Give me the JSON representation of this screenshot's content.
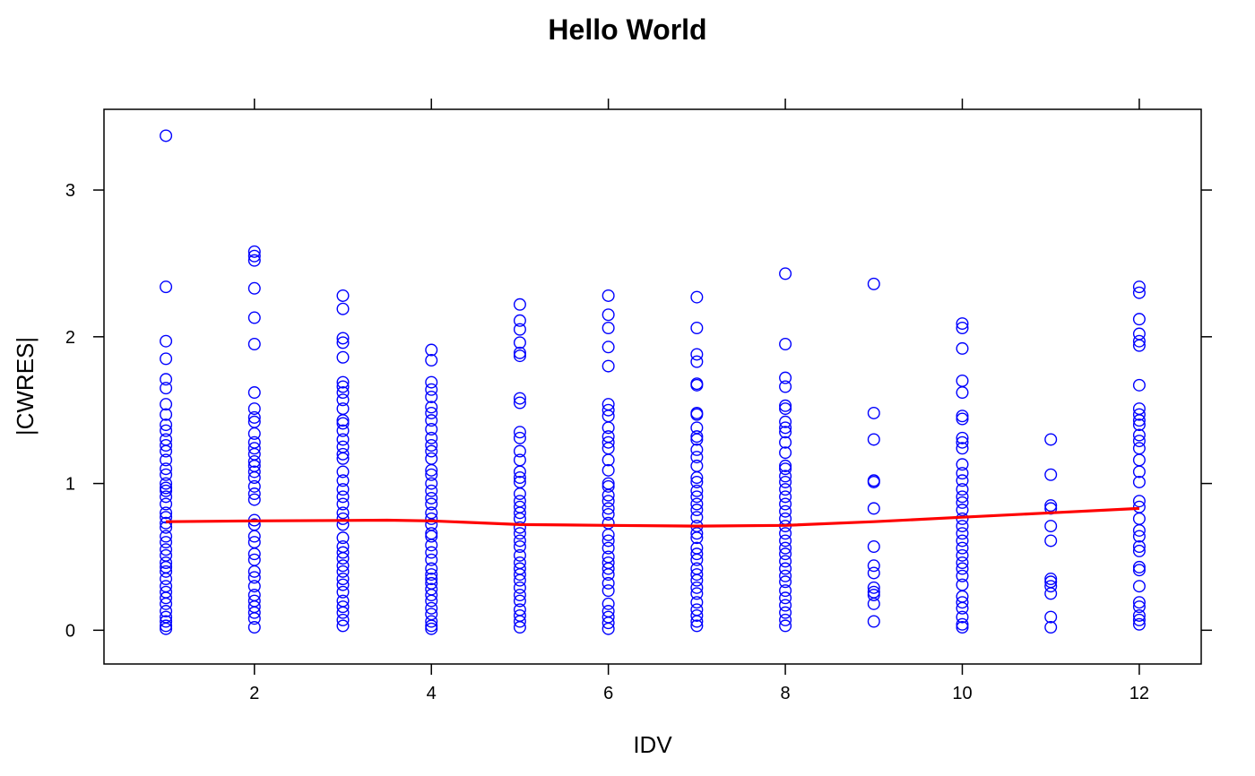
{
  "chart_data": {
    "type": "scatter",
    "title": "Hello World",
    "xlabel": "IDV",
    "ylabel": "|CWRES|",
    "xlim": [
      0.3,
      12.7
    ],
    "ylim": [
      -0.23,
      3.55
    ],
    "x_ticks": [
      2,
      4,
      6,
      8,
      10,
      12
    ],
    "y_ticks": [
      0,
      1,
      2,
      3
    ],
    "grid": false,
    "point_color": "#0000ff",
    "smooth_color": "#ff0000",
    "series": [
      {
        "points_by_x": [
          {
            "x": 1,
            "y": [
              3.37,
              2.34,
              1.97,
              1.85,
              1.71,
              1.65,
              1.54,
              1.47,
              1.4,
              1.36,
              1.3,
              1.26,
              1.22,
              1.16,
              1.1,
              1.06,
              1.0,
              0.97,
              0.95,
              0.91,
              0.86,
              0.8,
              0.77,
              0.73,
              0.7,
              0.64,
              0.6,
              0.55,
              0.51,
              0.46,
              0.43,
              0.4,
              0.35,
              0.3,
              0.26,
              0.22,
              0.18,
              0.13,
              0.09,
              0.06,
              0.03,
              0.01
            ]
          },
          {
            "x": 2,
            "y": [
              2.58,
              2.55,
              2.52,
              2.33,
              2.13,
              1.95,
              1.62,
              1.51,
              1.45,
              1.42,
              1.34,
              1.28,
              1.24,
              1.2,
              1.15,
              1.12,
              1.08,
              1.04,
              0.98,
              0.93,
              0.89,
              0.75,
              0.72,
              0.64,
              0.6,
              0.52,
              0.48,
              0.4,
              0.36,
              0.3,
              0.24,
              0.2,
              0.16,
              0.12,
              0.08,
              0.02
            ]
          },
          {
            "x": 3,
            "y": [
              2.28,
              2.19,
              1.99,
              1.96,
              1.86,
              1.69,
              1.66,
              1.62,
              1.57,
              1.51,
              1.43,
              1.41,
              1.36,
              1.3,
              1.25,
              1.2,
              1.17,
              1.08,
              1.02,
              0.96,
              0.91,
              0.86,
              0.8,
              0.76,
              0.72,
              0.63,
              0.57,
              0.53,
              0.49,
              0.44,
              0.4,
              0.35,
              0.31,
              0.26,
              0.2,
              0.16,
              0.12,
              0.07,
              0.03
            ]
          },
          {
            "x": 4,
            "y": [
              1.91,
              1.84,
              1.69,
              1.64,
              1.59,
              1.52,
              1.48,
              1.43,
              1.37,
              1.31,
              1.26,
              1.22,
              1.17,
              1.09,
              1.06,
              1.0,
              0.95,
              0.9,
              0.86,
              0.8,
              0.76,
              0.72,
              0.66,
              0.64,
              0.58,
              0.53,
              0.48,
              0.42,
              0.38,
              0.35,
              0.32,
              0.28,
              0.24,
              0.2,
              0.15,
              0.11,
              0.06,
              0.03,
              0.01
            ]
          },
          {
            "x": 5,
            "y": [
              2.22,
              2.11,
              2.05,
              1.96,
              1.89,
              1.87,
              1.58,
              1.55,
              1.35,
              1.31,
              1.22,
              1.16,
              1.08,
              1.04,
              1.01,
              0.93,
              0.88,
              0.84,
              0.8,
              0.76,
              0.7,
              0.66,
              0.61,
              0.57,
              0.51,
              0.46,
              0.42,
              0.38,
              0.34,
              0.29,
              0.24,
              0.2,
              0.14,
              0.1,
              0.06,
              0.02
            ]
          },
          {
            "x": 6,
            "y": [
              2.28,
              2.15,
              2.06,
              1.93,
              1.8,
              1.54,
              1.5,
              1.46,
              1.38,
              1.32,
              1.28,
              1.24,
              1.16,
              1.09,
              1.0,
              0.98,
              0.92,
              0.88,
              0.83,
              0.79,
              0.73,
              0.65,
              0.61,
              0.56,
              0.5,
              0.46,
              0.42,
              0.38,
              0.32,
              0.27,
              0.18,
              0.13,
              0.09,
              0.05,
              0.01
            ]
          },
          {
            "x": 7,
            "y": [
              2.27,
              2.06,
              1.88,
              1.83,
              1.68,
              1.67,
              1.48,
              1.47,
              1.38,
              1.32,
              1.3,
              1.23,
              1.18,
              1.12,
              1.04,
              1.01,
              0.95,
              0.91,
              0.86,
              0.82,
              0.77,
              0.71,
              0.66,
              0.63,
              0.56,
              0.52,
              0.48,
              0.42,
              0.38,
              0.34,
              0.29,
              0.25,
              0.19,
              0.14,
              0.1,
              0.06,
              0.03
            ]
          },
          {
            "x": 8,
            "y": [
              2.43,
              1.95,
              1.72,
              1.66,
              1.53,
              1.51,
              1.42,
              1.38,
              1.35,
              1.28,
              1.21,
              1.12,
              1.1,
              1.05,
              1.01,
              0.96,
              0.91,
              0.86,
              0.81,
              0.76,
              0.71,
              0.66,
              0.61,
              0.56,
              0.52,
              0.47,
              0.42,
              0.37,
              0.33,
              0.27,
              0.22,
              0.17,
              0.12,
              0.07,
              0.03
            ]
          },
          {
            "x": 9,
            "y": [
              2.36,
              1.48,
              1.3,
              1.02,
              1.01,
              0.83,
              0.57,
              0.44,
              0.39,
              0.29,
              0.26,
              0.24,
              0.18,
              0.06
            ]
          },
          {
            "x": 10,
            "y": [
              2.09,
              2.06,
              1.92,
              1.7,
              1.62,
              1.46,
              1.44,
              1.31,
              1.28,
              1.24,
              1.13,
              1.07,
              1.02,
              0.96,
              0.91,
              0.87,
              0.82,
              0.76,
              0.71,
              0.66,
              0.61,
              0.56,
              0.51,
              0.46,
              0.42,
              0.37,
              0.31,
              0.23,
              0.19,
              0.15,
              0.09,
              0.04,
              0.02
            ]
          },
          {
            "x": 11,
            "y": [
              1.3,
              1.06,
              0.85,
              0.83,
              0.71,
              0.61,
              0.35,
              0.33,
              0.3,
              0.25,
              0.09,
              0.02
            ]
          },
          {
            "x": 12,
            "y": [
              2.34,
              2.3,
              2.12,
              2.02,
              1.97,
              1.94,
              1.67,
              1.51,
              1.47,
              1.43,
              1.4,
              1.33,
              1.29,
              1.24,
              1.16,
              1.08,
              1.01,
              0.88,
              0.84,
              0.76,
              0.68,
              0.64,
              0.57,
              0.54,
              0.43,
              0.41,
              0.3,
              0.19,
              0.16,
              0.1,
              0.07,
              0.04
            ]
          }
        ]
      }
    ],
    "smooth_line": {
      "x": [
        1,
        2,
        3,
        3.5,
        4,
        5,
        6,
        7,
        8,
        9,
        10,
        11,
        12
      ],
      "y": [
        0.74,
        0.745,
        0.748,
        0.75,
        0.745,
        0.72,
        0.715,
        0.71,
        0.715,
        0.74,
        0.77,
        0.8,
        0.83
      ]
    }
  }
}
